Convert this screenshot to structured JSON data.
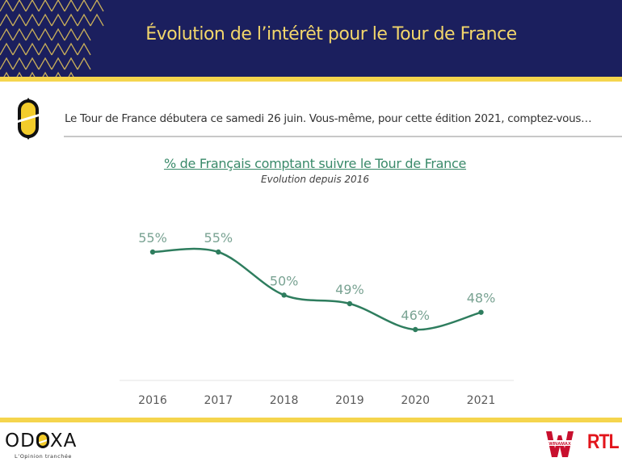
{
  "header": {
    "title": "Évolution de l’intérêt pour le Tour de France",
    "colors": {
      "background": "#1b1f5e",
      "accent": "#f2d66b",
      "stripe": "#f5d54d"
    }
  },
  "question": {
    "icon": "odoxa-o-icon",
    "text": "Le Tour de France débutera ce samedi 26 juin. Vous-même, pour cette édition 2021, comptez-vous…"
  },
  "chart_data": {
    "type": "line",
    "title": "% de Français comptant suivre le Tour de France",
    "subtitle": "Evolution depuis 2016",
    "xlabel": "",
    "ylabel": "",
    "categories": [
      "2016",
      "2017",
      "2018",
      "2019",
      "2020",
      "2021"
    ],
    "series": [
      {
        "name": "% de Français comptant suivre le Tour de France",
        "values": [
          55,
          55,
          50,
          49,
          46,
          48
        ],
        "labels": [
          "55%",
          "55%",
          "50%",
          "49%",
          "46%",
          "48%"
        ],
        "color": "#2e7d5e"
      }
    ],
    "ylim": [
      40,
      60
    ],
    "grid": false,
    "legend": "none",
    "smooth": true
  },
  "footer": {
    "brand": {
      "letters_before": "OD",
      "letters_after": "XA",
      "tagline": "L’Opinion tranchée"
    },
    "partners": [
      {
        "name": "Winamax",
        "label": "WINAMAX",
        "icon": "winamax-logo-icon"
      },
      {
        "name": "RTL",
        "label": "RTL"
      }
    ]
  }
}
